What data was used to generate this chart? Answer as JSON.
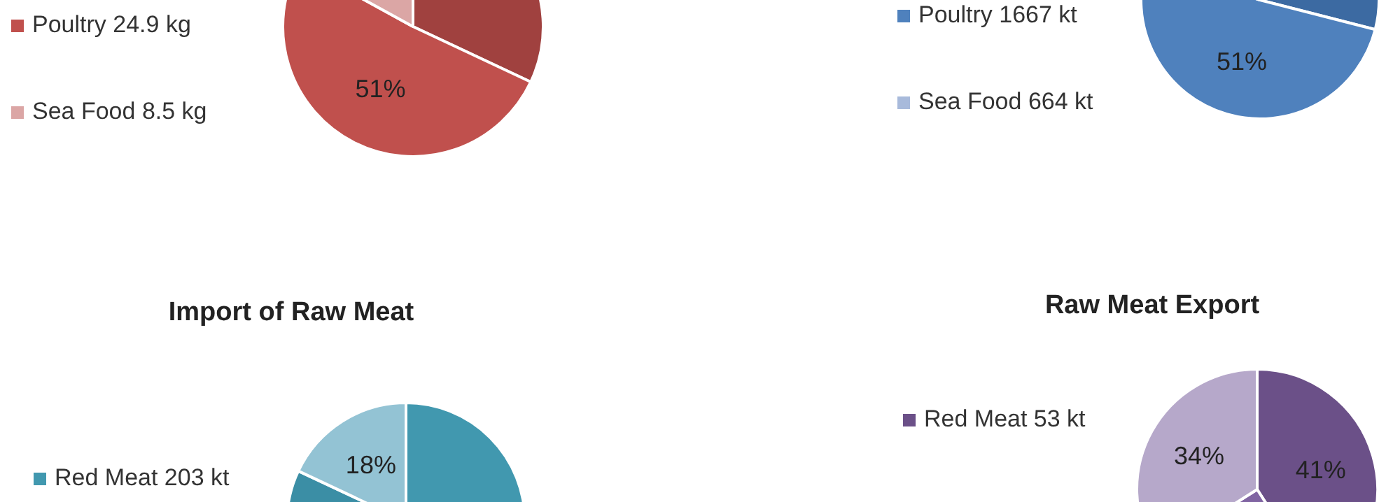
{
  "chart_data": [
    {
      "type": "pie",
      "categories": [
        null,
        "Poultry 24.9 kg",
        "Sea Food 8.5 kg"
      ],
      "values": [
        32,
        51,
        17
      ],
      "colors": [
        "#a0413f",
        "#c0504d",
        "#dba6a5"
      ],
      "value_labels": [
        null,
        "51%",
        null
      ],
      "legend": "left"
    },
    {
      "type": "pie",
      "categories": [
        null,
        "Poultry 1667 kt",
        "Sea Food 664 kt"
      ],
      "values": [
        29,
        51,
        20
      ],
      "colors": [
        "#3c6aa2",
        "#4f81bd",
        "#a8badb"
      ],
      "value_labels": [
        null,
        "51%",
        null
      ],
      "legend": "left"
    },
    {
      "type": "pie",
      "title": "Import of Raw Meat",
      "categories": [
        "Red Meat 203 kt",
        null,
        null
      ],
      "values": [
        50,
        32,
        18
      ],
      "colors": [
        "#4198af",
        "#3b8ea5",
        "#93c3d4"
      ],
      "value_labels": [
        null,
        null,
        "18%"
      ],
      "legend": "left"
    },
    {
      "type": "pie",
      "title": "Raw Meat Export",
      "categories": [
        "Red Meat 53 kt",
        null,
        null
      ],
      "values": [
        41,
        25,
        34
      ],
      "colors": [
        "#6b5088",
        "#8064a2",
        "#b6a8ca"
      ],
      "value_labels": [
        "41%",
        null,
        "34%"
      ],
      "legend": "left"
    }
  ]
}
